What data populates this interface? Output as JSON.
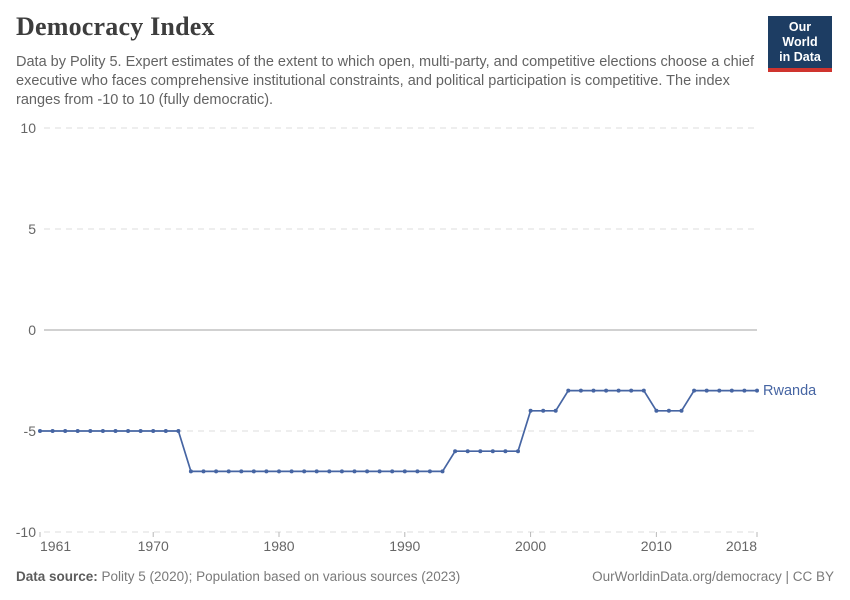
{
  "header": {
    "title": "Democracy Index",
    "subtitle": "Data by Polity 5. Expert estimates of the extent to which open, multi-party, and competitive elections choose a chief executive who faces comprehensive institutional constraints, and political participation is competitive. The index ranges from -10 to 10 (fully democratic).",
    "logo": {
      "line1": "Our World",
      "line2": "in Data",
      "bg_color": "#1d3d63",
      "bar_color": "#cf342e"
    }
  },
  "chart_data": {
    "type": "line",
    "title": "Democracy Index",
    "xlabel": "",
    "ylabel": "",
    "xlim": [
      1961,
      2018
    ],
    "ylim": [
      -10,
      10
    ],
    "yticks": [
      10,
      5,
      0,
      -5,
      -10
    ],
    "xticks": [
      1961,
      1970,
      1980,
      1990,
      2000,
      2010,
      2018
    ],
    "grid": "horizontal-dashed, solid zero line",
    "legend_position": "end-of-line label",
    "colors": {
      "line": "#4665A3",
      "gridline": "#dedede",
      "zero_line": "#a3a3a3",
      "axis_text": "#666666"
    },
    "series": [
      {
        "name": "Rwanda",
        "color": "#4665A3",
        "start_year": 1961,
        "values": [
          -5,
          -5,
          -5,
          -5,
          -5,
          -5,
          -5,
          -5,
          -5,
          -5,
          -5,
          -5,
          -7,
          -7,
          -7,
          -7,
          -7,
          -7,
          -7,
          -7,
          -7,
          -7,
          -7,
          -7,
          -7,
          -7,
          -7,
          -7,
          -7,
          -7,
          -7,
          -7,
          -7,
          -6,
          -6,
          -6,
          -6,
          -6,
          -6,
          -4,
          -4,
          -4,
          -3,
          -3,
          -3,
          -3,
          -3,
          -3,
          -3,
          -4,
          -4,
          -4,
          -3,
          -3,
          -3,
          -3,
          -3,
          -3
        ]
      }
    ]
  },
  "footer": {
    "source_label": "Data source:",
    "source_text": " Polity 5 (2020); Population based on various sources (2023)",
    "credit": "OurWorldinData.org/democracy | CC BY"
  }
}
